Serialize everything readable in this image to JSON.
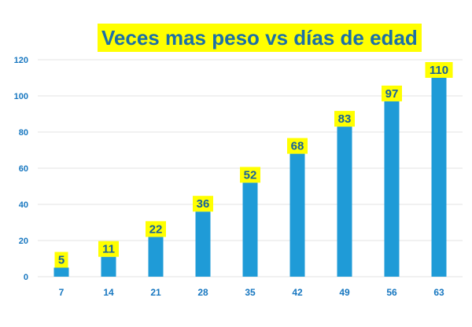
{
  "chart_data": {
    "type": "bar",
    "title": "Veces mas peso vs días de edad",
    "xlabel": "",
    "ylabel": "",
    "categories": [
      "7",
      "14",
      "21",
      "28",
      "35",
      "42",
      "49",
      "56",
      "63"
    ],
    "values": [
      5,
      11,
      22,
      36,
      52,
      68,
      83,
      97,
      110
    ],
    "ylim": [
      0,
      120
    ],
    "yticks": [
      0,
      20,
      40,
      60,
      80,
      100,
      120
    ],
    "grid": true,
    "legend": "none",
    "data_labels": true,
    "colors": {
      "bar": "#1f9bd7",
      "label_bg": "#ffff00",
      "label_text": "#17629a",
      "axis_text": "#1777c0",
      "title_text": "#1b6fa8",
      "grid": "#e3e3e3"
    }
  }
}
